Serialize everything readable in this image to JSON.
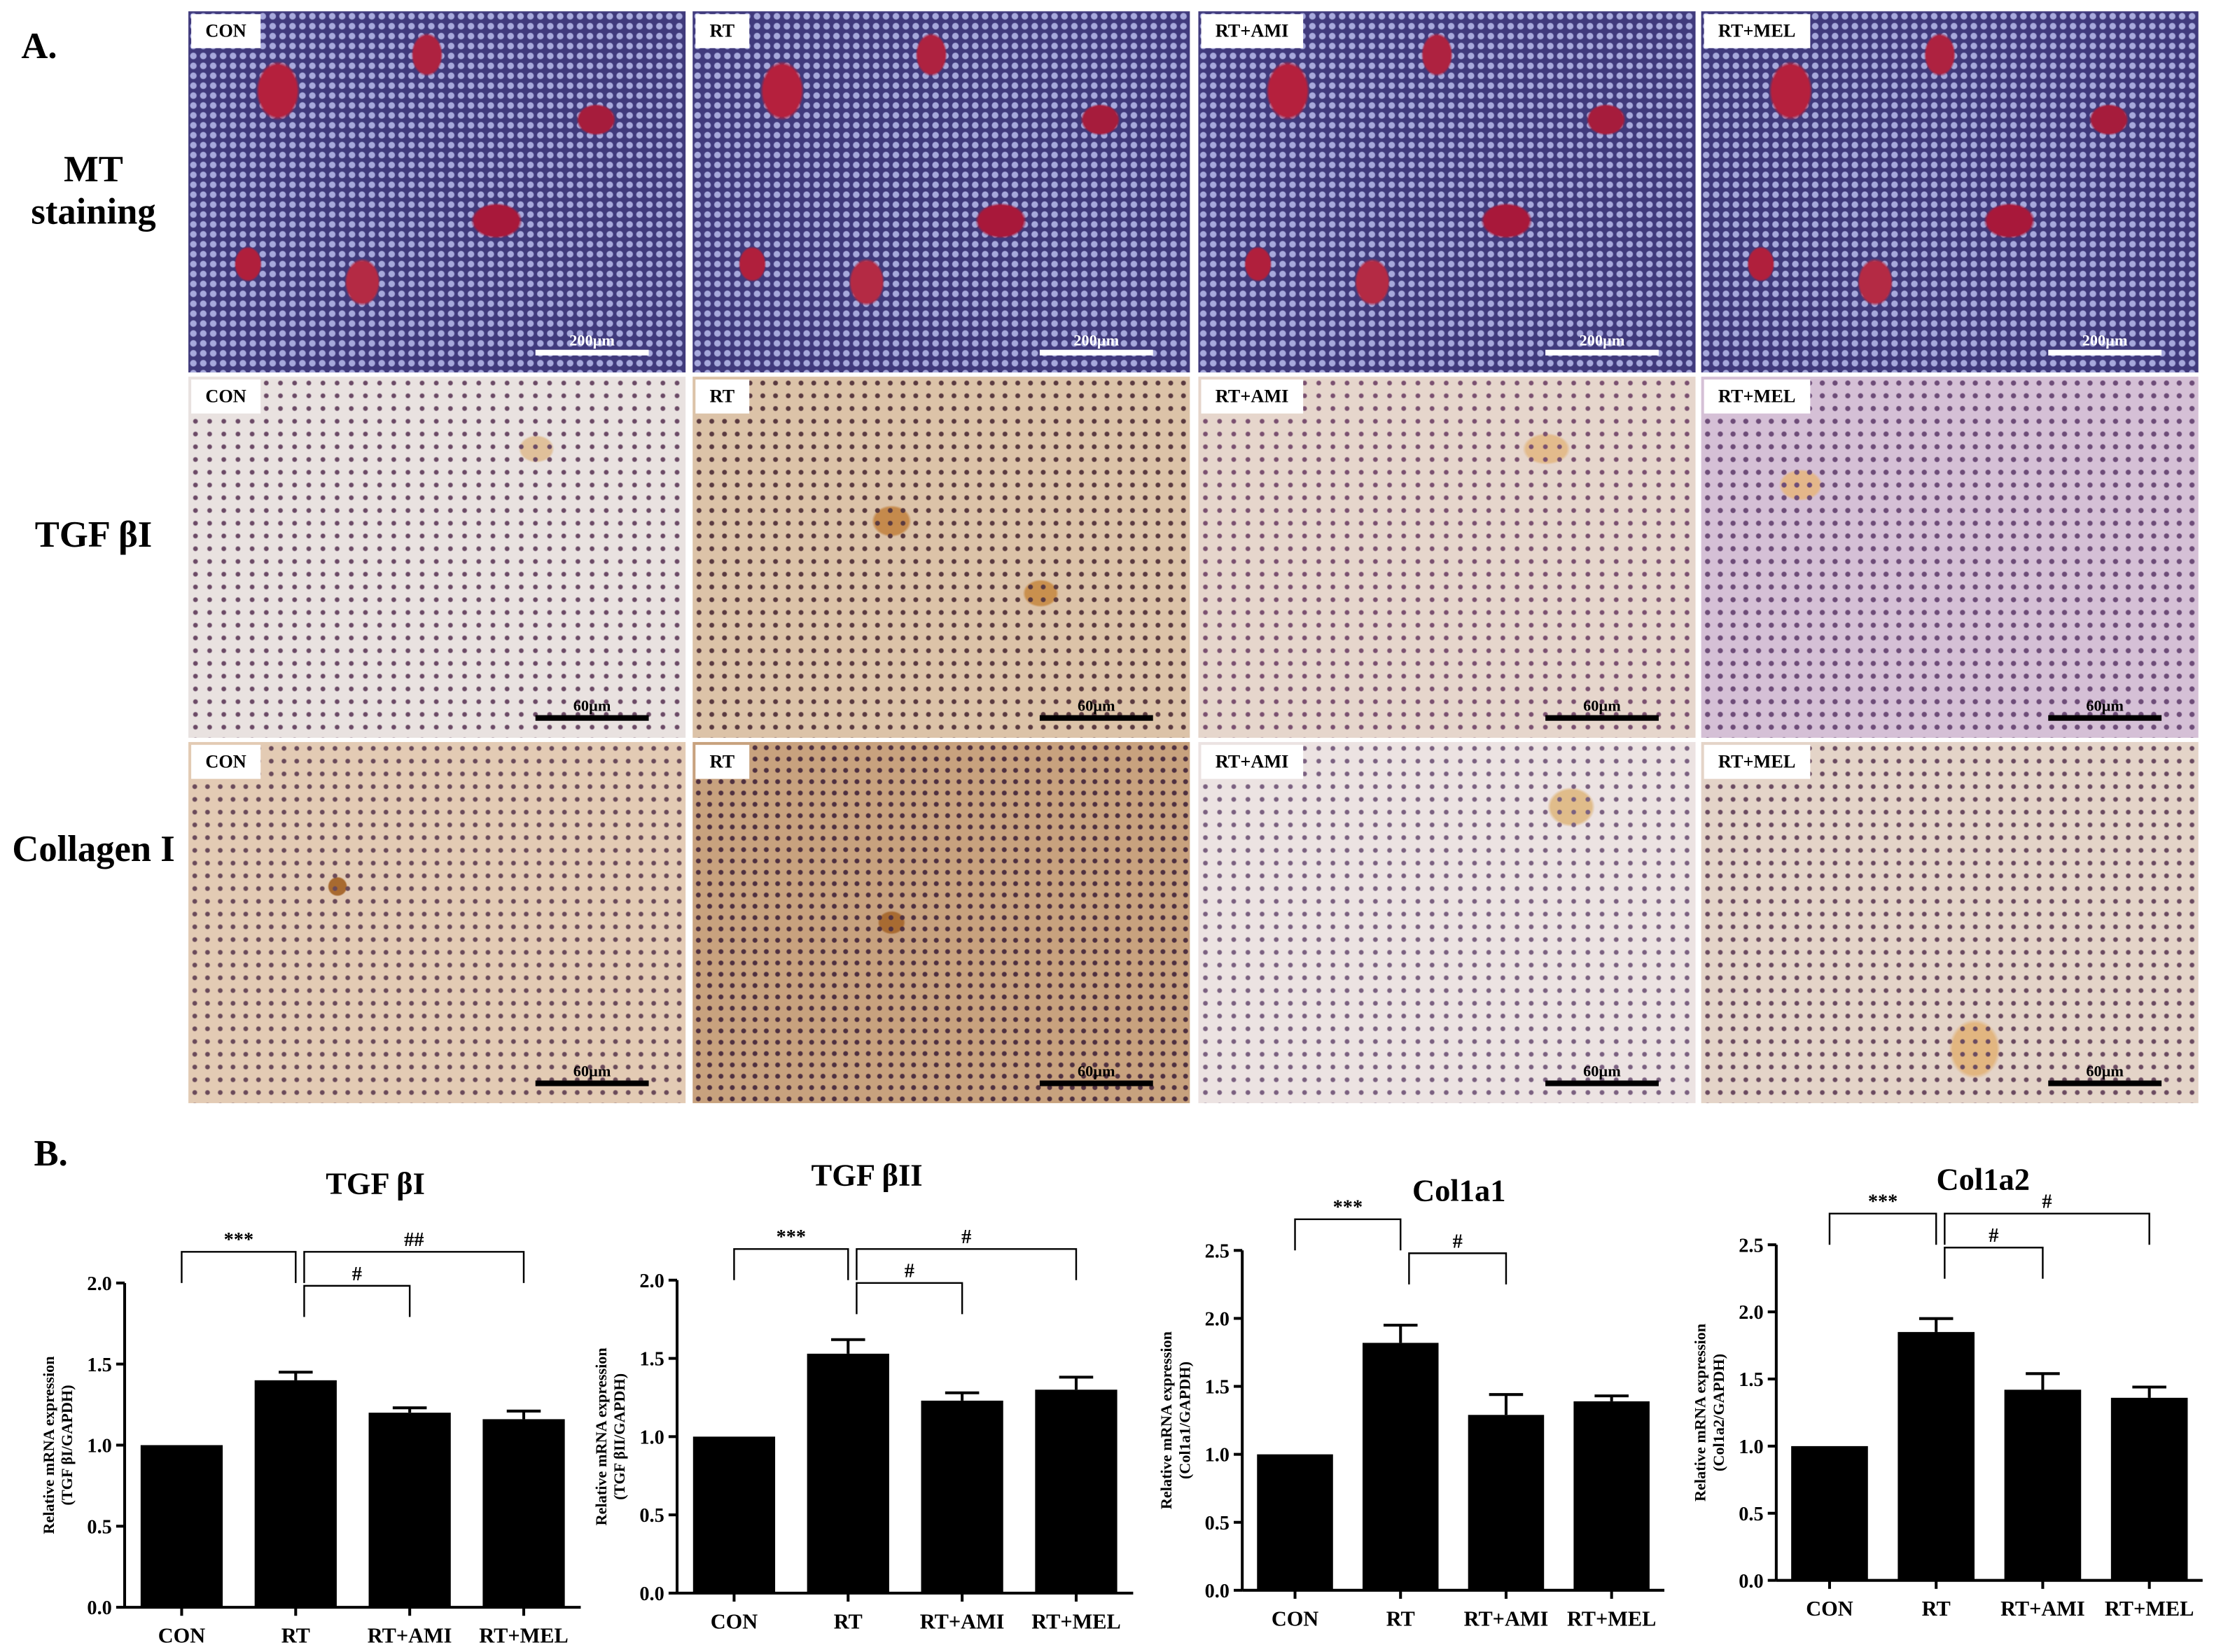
{
  "panel_a": {
    "label": "A.",
    "row_labels": [
      "MT staining",
      "TGF βI",
      "Collagen I"
    ],
    "images": [
      [
        {
          "group": "CON",
          "scale": "200µm"
        },
        {
          "group": "RT",
          "scale": "200µm"
        },
        {
          "group": "RT+AMI",
          "scale": "200µm"
        },
        {
          "group": "RT+MEL",
          "scale": "200µm"
        }
      ],
      [
        {
          "group": "CON",
          "scale": "60µm"
        },
        {
          "group": "RT",
          "scale": "60µm"
        },
        {
          "group": "RT+AMI",
          "scale": "60µm"
        },
        {
          "group": "RT+MEL",
          "scale": "60µm"
        }
      ],
      [
        {
          "group": "CON",
          "scale": "60µm"
        },
        {
          "group": "RT",
          "scale": "60µm"
        },
        {
          "group": "RT+AMI",
          "scale": "60µm"
        },
        {
          "group": "RT+MEL",
          "scale": "60µm"
        }
      ]
    ]
  },
  "panel_b": {
    "label": "B."
  },
  "chart_data": [
    {
      "type": "bar",
      "title": "TGF βI",
      "ylabel": [
        "Relative mRNA expression",
        "(TGF βI/GAPDH)"
      ],
      "categories": [
        "CON",
        "RT",
        "RT+AMI",
        "RT+MEL"
      ],
      "values": [
        1.0,
        1.4,
        1.2,
        1.16
      ],
      "errors": [
        0,
        0.05,
        0.03,
        0.05
      ],
      "color": "#000000",
      "ylim": [
        0,
        2.0
      ],
      "yticks": [
        {
          "value": 0,
          "label": "0.0"
        },
        0.5,
        {
          "value": 1,
          "label": "1.0"
        },
        1.5,
        {
          "value": 2,
          "label": "2.0"
        }
      ],
      "annotations": [
        "***",
        "#",
        "##"
      ]
    },
    {
      "type": "bar",
      "title": "TGF βII",
      "ylabel": [
        "Relative mRNA expression",
        "(TGF βII/GAPDH)"
      ],
      "categories": [
        "CON",
        "RT",
        "RT+AMI",
        "RT+MEL"
      ],
      "values": [
        1.0,
        1.53,
        1.23,
        1.3
      ],
      "errors": [
        0,
        0.09,
        0.05,
        0.08
      ],
      "color": "#000000",
      "ylim": [
        0,
        2.0
      ],
      "yticks": [
        {
          "value": 0,
          "label": "0.0"
        },
        0.5,
        {
          "value": 1,
          "label": "1.0"
        },
        1.5,
        {
          "value": 2,
          "label": "2.0"
        }
      ],
      "annotations": [
        "***",
        "#",
        "#"
      ]
    },
    {
      "type": "bar",
      "title": "Col1a1",
      "ylabel": [
        "Relative mRNA expression",
        "(Col1a1/GAPDH)"
      ],
      "categories": [
        "CON",
        "RT",
        "RT+AMI",
        "RT+MEL"
      ],
      "values": [
        1.0,
        1.82,
        1.29,
        1.39
      ],
      "errors": [
        0,
        0.13,
        0.15,
        0.04
      ],
      "color": "#000000",
      "ylim": [
        0,
        2.5
      ],
      "yticks": [
        {
          "value": 0,
          "label": "0.0"
        },
        0.5,
        {
          "value": 1,
          "label": "1.0"
        },
        1.5,
        {
          "value": 2,
          "label": "2.0"
        },
        2.5
      ],
      "annotations": [
        "***",
        "#"
      ]
    },
    {
      "type": "bar",
      "title": "Col1a2",
      "ylabel": [
        "Relative mRNA expression",
        "(Col1a2/GAPDH)"
      ],
      "categories": [
        "CON",
        "RT",
        "RT+AMI",
        "RT+MEL"
      ],
      "values": [
        1.0,
        1.85,
        1.42,
        1.36
      ],
      "errors": [
        0,
        0.1,
        0.12,
        0.08
      ],
      "color": "#000000",
      "ylim": [
        0,
        2.5
      ],
      "yticks": [
        {
          "value": 0,
          "label": "0.0"
        },
        0.5,
        {
          "value": 1,
          "label": "1.0"
        },
        1.5,
        {
          "value": 2,
          "label": "2.0"
        },
        2.5
      ],
      "annotations": [
        "***",
        "#",
        "#"
      ]
    }
  ]
}
